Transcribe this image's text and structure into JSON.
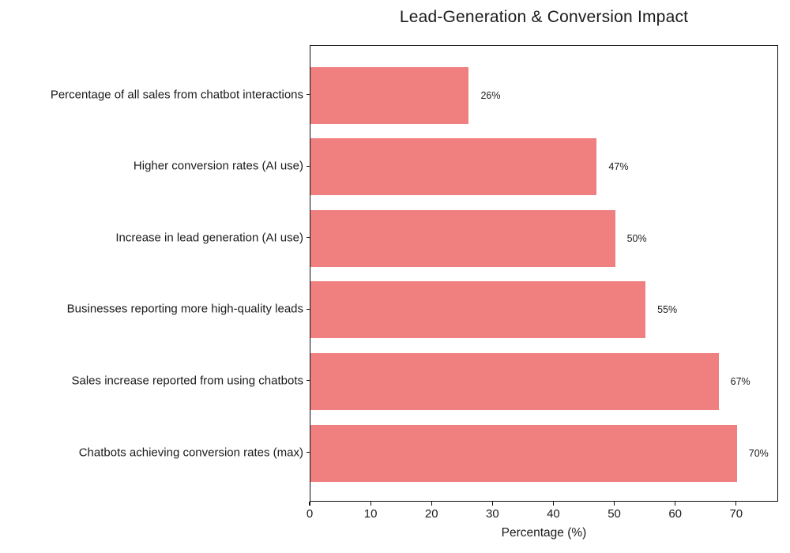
{
  "chart_data": {
    "type": "bar",
    "orientation": "horizontal",
    "title": "Lead-Generation & Conversion Impact",
    "categories": [
      "Percentage of all sales from chatbot interactions",
      "Higher conversion rates (AI use)",
      "Increase in lead generation (AI use)",
      "Businesses reporting more high-quality leads",
      "Sales increase reported from using chatbots",
      "Chatbots achieving conversion rates (max)"
    ],
    "values": [
      26,
      47,
      50,
      55,
      67,
      70
    ],
    "value_labels": [
      "26%",
      "47%",
      "50%",
      "55%",
      "67%",
      "70%"
    ],
    "xlabel": "Percentage (%)",
    "xlim": [
      0,
      76.9
    ],
    "xticks": [
      0,
      10,
      20,
      30,
      40,
      50,
      60,
      70
    ],
    "bar_color": "#f08080",
    "text_color": "#1b1b1b",
    "axis_color": "#0f0f0f",
    "grid": false,
    "legend": false
  }
}
